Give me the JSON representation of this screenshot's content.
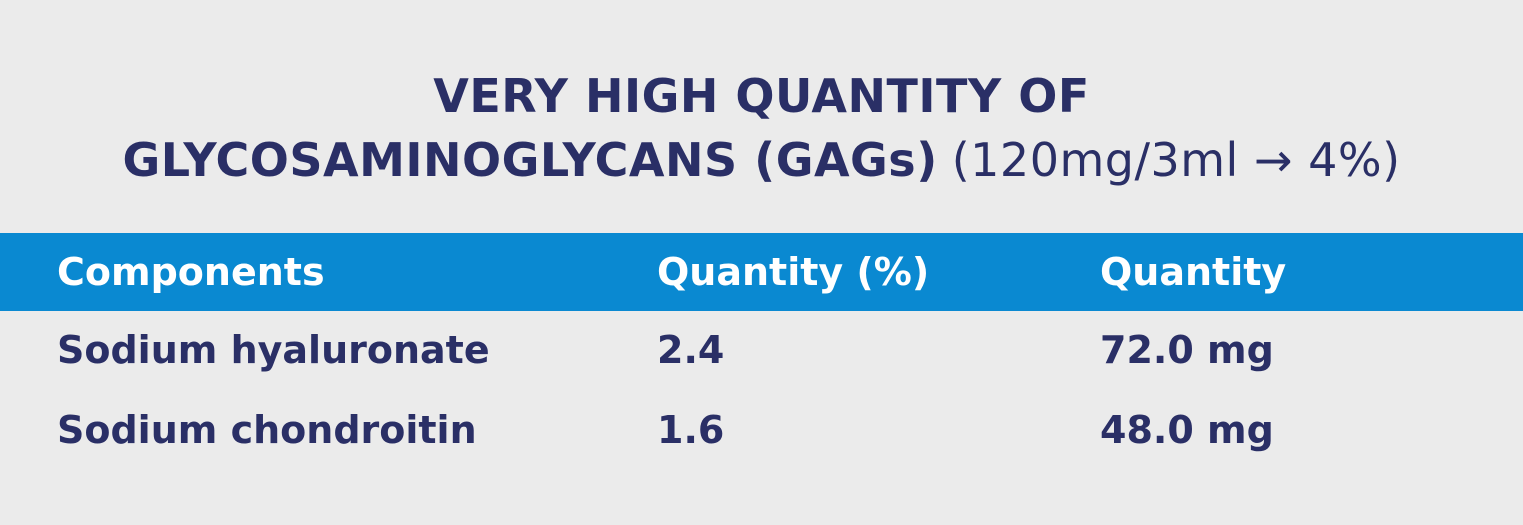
{
  "title": {
    "line1": "VERY HIGH QUANTITY OF",
    "line2": {
      "bold": "GLYCOSAMINOGLYCANS (GAGs)",
      "light": "(120mg/3ml → 4%)"
    }
  },
  "table": {
    "header": [
      "Components",
      "Quantity (%)",
      "Quantity"
    ],
    "rows": [
      [
        "Sodium hyaluronate",
        "2.4",
        "72.0 mg"
      ],
      [
        "Sodium chondroitin",
        "1.6",
        "48.0 mg"
      ]
    ]
  }
}
